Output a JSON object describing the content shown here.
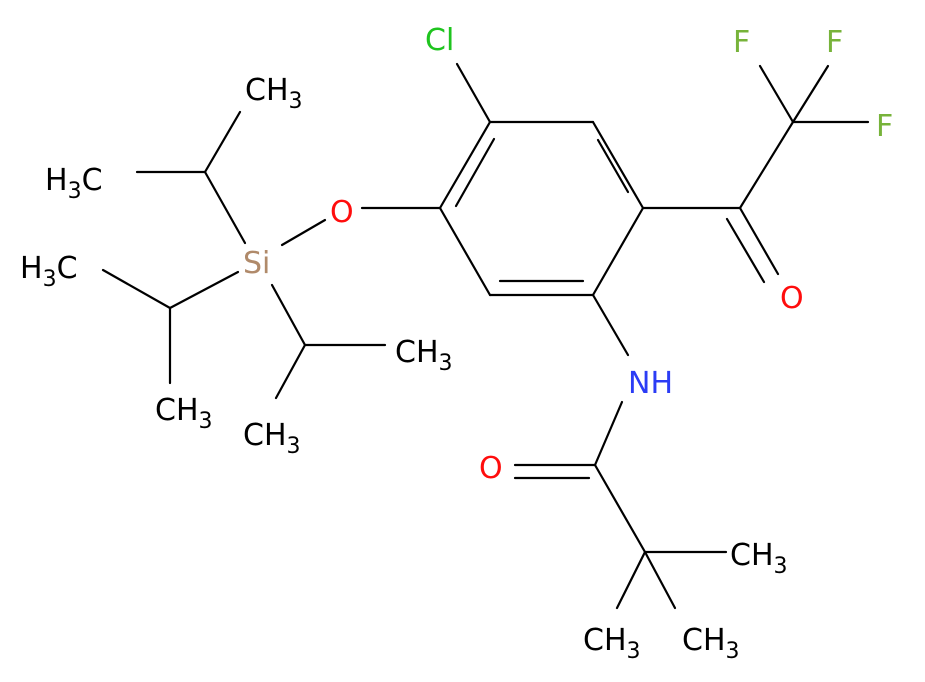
{
  "atoms": [
    {
      "label": "Cl"
    },
    {
      "label": "F"
    },
    {
      "label": "F"
    },
    {
      "label": "F"
    },
    {
      "label": "O"
    },
    {
      "label": "NH"
    },
    {
      "label": "O"
    },
    {
      "label": "CH",
      "sub": "3"
    },
    {
      "label": "CH",
      "sub": "3"
    },
    {
      "label": "CH",
      "sub": "3"
    },
    {
      "label": "O"
    },
    {
      "label": "Si"
    },
    {
      "label": "CH",
      "sub": "3"
    },
    {
      "label": "H",
      "sub": "3",
      "after": "C"
    },
    {
      "label": "H",
      "sub": "3",
      "after": "C"
    },
    {
      "label": "CH",
      "sub": "3"
    },
    {
      "label": "CH",
      "sub": "3"
    },
    {
      "label": "CH",
      "sub": "3"
    }
  ]
}
